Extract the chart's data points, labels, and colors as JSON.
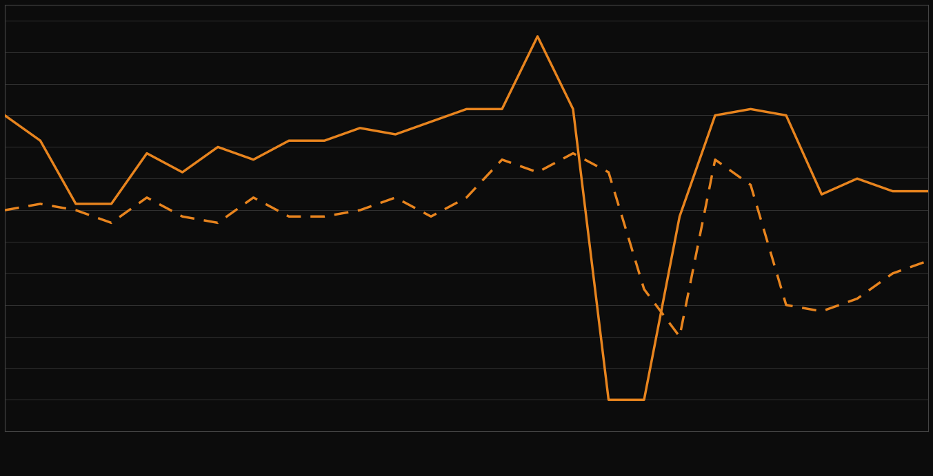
{
  "background_color": "#0c0c0c",
  "plot_bg_color": "#0c0c0c",
  "line_color": "#e8841e",
  "grid_color": "#333333",
  "solid_line": [
    40,
    32,
    12,
    12,
    28,
    22,
    30,
    26,
    32,
    32,
    36,
    34,
    38,
    42,
    42,
    65,
    42,
    -50,
    -50,
    8,
    40,
    42,
    40,
    15,
    20,
    16,
    16
  ],
  "dashed_line": [
    10,
    12,
    10,
    6,
    14,
    8,
    6,
    14,
    8,
    8,
    10,
    14,
    8,
    14,
    26,
    22,
    28,
    22,
    -15,
    -30,
    26,
    18,
    -20,
    -22,
    -18,
    -10,
    -6
  ],
  "n_points": 27,
  "ylim": [
    -60,
    75
  ],
  "xlim": [
    0,
    26
  ],
  "grid_lines_y": [
    -50,
    -40,
    -30,
    -20,
    -10,
    0,
    10,
    20,
    30,
    40,
    50,
    60,
    70
  ],
  "linewidth": 2.5,
  "legend_solid_label": "",
  "legend_dashed_label": ""
}
